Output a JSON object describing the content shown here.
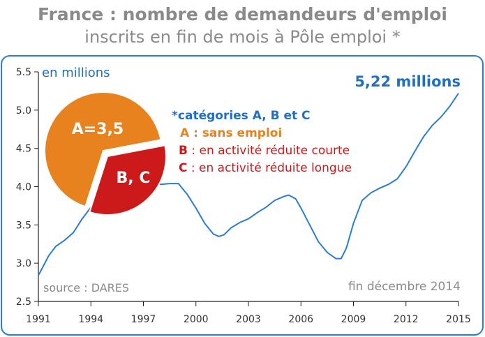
{
  "title": "France : nombre de demandeurs d'emploi",
  "subtitle": "inscrits en fin de mois à Pôle emploi *",
  "chart_data": {
    "type": "line",
    "title": "France : nombre de demandeurs d'emploi",
    "subtitle": "inscrits en fin de mois à Pôle emploi *",
    "ylabel": "en millions",
    "xlabel": "",
    "xlim": [
      1991,
      2015
    ],
    "ylim": [
      2.5,
      5.5
    ],
    "x_ticks": [
      "1991",
      "1994",
      "1997",
      "2000",
      "2003",
      "2006",
      "2009",
      "2012",
      "2015"
    ],
    "y_ticks": [
      "5.5",
      "5.0",
      "4.5",
      "4.0",
      "3.5",
      "3.0",
      "2.5"
    ],
    "grid": false,
    "colors": {
      "line": "#2a7dd1",
      "orange": "#e8821e",
      "red": "#cc1a1a",
      "blue_text": "#1f6fc5",
      "frame": "#2a7dd1"
    },
    "series": [
      {
        "x": [
          1991.0,
          1991.3,
          1991.6,
          1992.0,
          1992.5,
          1993.0,
          1993.5,
          1994.0,
          1994.4,
          1994.8,
          1995.1,
          1995.3,
          1995.6,
          1996.0,
          1996.5,
          1997.0,
          1997.5,
          1998.0,
          1998.5,
          1999.0,
          1999.5,
          2000.0,
          2000.5,
          2001.0,
          2001.3,
          2001.6,
          2002.0,
          2002.5,
          2003.0,
          2003.5,
          2004.0,
          2004.5,
          2005.0,
          2005.3,
          2005.7,
          2006.0,
          2006.5,
          2007.0,
          2007.5,
          2008.0,
          2008.3,
          2008.6,
          2009.0,
          2009.5,
          2010.0,
          2010.5,
          2011.0,
          2011.5,
          2012.0,
          2012.5,
          2013.0,
          2013.5,
          2014.0,
          2014.5,
          2015.0
        ],
        "values": [
          2.84,
          2.97,
          3.1,
          3.22,
          3.3,
          3.4,
          3.58,
          3.73,
          3.79,
          3.76,
          3.64,
          3.68,
          3.82,
          3.92,
          3.98,
          4.03,
          4.05,
          4.03,
          4.04,
          4.04,
          3.9,
          3.72,
          3.52,
          3.38,
          3.35,
          3.37,
          3.46,
          3.53,
          3.58,
          3.66,
          3.73,
          3.82,
          3.87,
          3.89,
          3.84,
          3.72,
          3.5,
          3.28,
          3.14,
          3.06,
          3.06,
          3.2,
          3.52,
          3.82,
          3.92,
          3.98,
          4.03,
          4.1,
          4.26,
          4.46,
          4.65,
          4.8,
          4.91,
          5.05,
          5.22
        ]
      }
    ],
    "annotations": {
      "unit_label": "en millions",
      "last_value": "5,22 millions",
      "source": "source : DARES",
      "date": "fin décembre 2014",
      "legend_title": "*catégories A, B et C",
      "legend_a_letter": "A",
      "legend_a_text": " : sans emploi",
      "legend_b_letter": "B",
      "legend_b_text": " : en activité réduite courte",
      "legend_c_letter": "C",
      "legend_c_text": " : en activité réduite longue"
    },
    "pie": {
      "slices": [
        {
          "label": "A=3,5",
          "value": 3.5,
          "color": "#e8821e"
        },
        {
          "label": "B, C",
          "value": 1.72,
          "color": "#cc1a1a"
        }
      ]
    }
  }
}
